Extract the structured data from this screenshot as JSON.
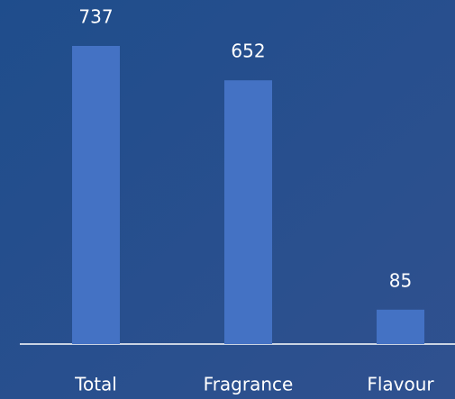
{
  "chart_data": {
    "type": "bar",
    "categories": [
      "Total",
      "Fragrance",
      "Flavour"
    ],
    "values": [
      737,
      652,
      85
    ],
    "color": "#4472c4"
  }
}
